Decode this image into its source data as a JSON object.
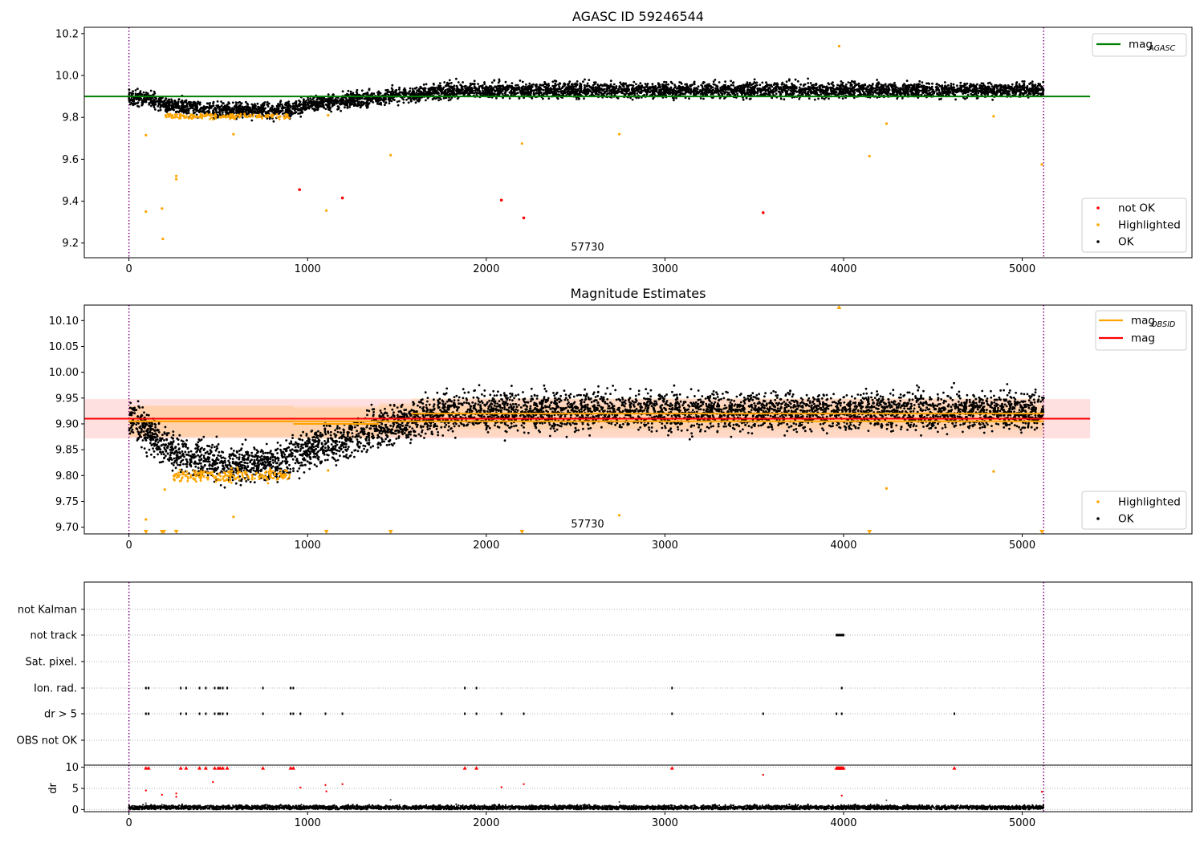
{
  "chart_data": [
    {
      "type": "scatter",
      "title": "AGASC ID 59246544",
      "annotation": "57730",
      "xlim": [
        -250,
        5950
      ],
      "ylim": [
        9.13,
        10.23
      ],
      "x_ticks": [
        0,
        1000,
        2000,
        3000,
        4000,
        5000
      ],
      "y_ticks": [
        9.2,
        9.4,
        9.6,
        9.8,
        10.0,
        10.2
      ],
      "y_tick_labels": [
        "9.2",
        "9.4",
        "9.6",
        "9.8",
        "10.0",
        "10.2"
      ],
      "vlines": [
        0,
        5120
      ],
      "hline": {
        "label": "mag",
        "label_sub": "AGASC",
        "y": 9.9,
        "x_range": [
          -250,
          5380
        ],
        "color": "#008000"
      },
      "legend_position": "top-right, bottom-right",
      "legend_lines": [
        {
          "name": "mag",
          "sub": "AGASC",
          "color": "#008000"
        }
      ],
      "legend_points": [
        {
          "name": "not OK",
          "color": "#ff0000"
        },
        {
          "name": "Highlighted",
          "color": "#ffa500"
        },
        {
          "name": "OK",
          "color": "#000000"
        }
      ],
      "trend": [
        [
          0,
          9.9
        ],
        [
          100,
          9.89
        ],
        [
          200,
          9.86
        ],
        [
          400,
          9.84
        ],
        [
          600,
          9.835
        ],
        [
          800,
          9.83
        ],
        [
          900,
          9.835
        ],
        [
          1000,
          9.86
        ],
        [
          1200,
          9.88
        ],
        [
          1400,
          9.895
        ],
        [
          1600,
          9.91
        ],
        [
          1800,
          9.93
        ],
        [
          5120,
          9.93
        ]
      ],
      "ok_n": 5100,
      "ok_x_range": [
        0,
        5120
      ],
      "ok_scatter": 0.018,
      "highlight_band": {
        "x_range": [
          200,
          900
        ],
        "y": 9.805
      },
      "highlighted_points": [
        [
          95,
          9.715
        ],
        [
          95,
          9.35
        ],
        [
          185,
          9.365
        ],
        [
          190,
          9.22
        ],
        [
          265,
          9.52
        ],
        [
          265,
          9.505
        ],
        [
          585,
          9.72
        ],
        [
          1105,
          9.355
        ],
        [
          1115,
          9.81
        ],
        [
          1465,
          9.62
        ],
        [
          2200,
          9.675
        ],
        [
          2745,
          9.72
        ],
        [
          3975,
          10.14
        ],
        [
          4145,
          9.615
        ],
        [
          4240,
          9.77
        ],
        [
          4840,
          9.805
        ],
        [
          5110,
          9.575
        ]
      ],
      "not_ok_points": [
        [
          955,
          9.455
        ],
        [
          1195,
          9.415
        ],
        [
          2085,
          9.405
        ],
        [
          2210,
          9.32
        ],
        [
          3550,
          9.345
        ]
      ]
    },
    {
      "type": "scatter",
      "title": "Magnitude Estimates",
      "annotation": "57730",
      "xlim": [
        -250,
        5950
      ],
      "ylim": [
        9.687,
        10.13
      ],
      "x_ticks": [
        0,
        1000,
        2000,
        3000,
        4000,
        5000
      ],
      "y_ticks": [
        9.7,
        9.75,
        9.8,
        9.85,
        9.9,
        9.95,
        10.0,
        10.05,
        10.1
      ],
      "y_tick_labels": [
        "9.70",
        "9.75",
        "9.80",
        "9.85",
        "9.90",
        "9.95",
        "10.00",
        "10.05",
        "10.10"
      ],
      "vlines": [
        0,
        5120
      ],
      "mag_line": {
        "y": 9.91,
        "band": [
          9.872,
          9.948
        ],
        "x_range": [
          -250,
          5380
        ],
        "color": "#ff0000"
      },
      "obsid_mag": [
        [
          0,
          5120,
          9.905,
          9.875,
          9.935
        ],
        [
          0,
          920,
          9.905,
          9.875,
          9.935
        ],
        [
          920,
          1400,
          9.9,
          9.87,
          9.93
        ],
        [
          1400,
          1580,
          9.91,
          9.88,
          9.94
        ],
        [
          1580,
          5120,
          9.92,
          9.89,
          9.95
        ]
      ],
      "legend_position": "top-right, bottom-right",
      "legend_lines": [
        {
          "name": "mag",
          "sub": "OBSID",
          "color": "#ffa500"
        },
        {
          "name": "mag",
          "sub": "",
          "color": "#ff0000"
        }
      ],
      "legend_points": [
        {
          "name": "Highlighted",
          "color": "#ffa500"
        },
        {
          "name": "OK",
          "color": "#000000"
        }
      ],
      "trend": [
        [
          0,
          9.91
        ],
        [
          60,
          9.9
        ],
        [
          150,
          9.87
        ],
        [
          250,
          9.845
        ],
        [
          400,
          9.83
        ],
        [
          600,
          9.82
        ],
        [
          800,
          9.825
        ],
        [
          900,
          9.835
        ],
        [
          1000,
          9.85
        ],
        [
          1200,
          9.87
        ],
        [
          1400,
          9.89
        ],
        [
          1600,
          9.91
        ],
        [
          1800,
          9.925
        ],
        [
          5120,
          9.925
        ]
      ],
      "ok_n": 5100,
      "ok_x_range": [
        0,
        5120
      ],
      "ok_scatter": 0.018,
      "highlight_band": {
        "x_range": [
          250,
          900
        ],
        "y": 9.8
      },
      "highlighted_points": [
        [
          95,
          9.715
        ],
        [
          200,
          9.773
        ],
        [
          585,
          9.72
        ],
        [
          1115,
          9.81
        ],
        [
          2745,
          9.723
        ],
        [
          4240,
          9.775
        ],
        [
          4840,
          9.808
        ]
      ],
      "clipped_low": [
        95,
        185,
        195,
        265,
        1105,
        1465,
        2200,
        4145,
        5110
      ],
      "clipped_high": [
        3975
      ]
    },
    {
      "type": "scatter",
      "annotation": "",
      "xlim": [
        -250,
        5950
      ],
      "x_ticks": [
        0,
        1000,
        2000,
        3000,
        4000,
        5000
      ],
      "vlines": [
        0,
        5120
      ],
      "flag_rows": [
        "not Kalman",
        "not track",
        "Sat. pixel.",
        "Ion. rad.",
        "dr > 5",
        "OBS not OK"
      ],
      "flag_points": {
        "not Kalman": [],
        "not track": [
          3960,
          3965,
          3970,
          3975,
          3980,
          3985,
          3990,
          3995,
          4000
        ],
        "Sat. pixel.": [],
        "Ion. rad.": [
          95,
          110,
          290,
          320,
          395,
          430,
          480,
          500,
          510,
          525,
          550,
          750,
          905,
          920,
          1880,
          1945,
          3040,
          3990
        ],
        "dr > 5": [
          95,
          110,
          290,
          320,
          395,
          430,
          480,
          500,
          510,
          525,
          550,
          750,
          905,
          920,
          960,
          1100,
          1195,
          1880,
          1945,
          2085,
          2210,
          3040,
          3550,
          3960,
          3990,
          4620
        ],
        "OBS not OK": []
      },
      "dr_ylabel": "dr",
      "dr_ylim": [
        -0.5,
        10.5
      ],
      "dr_y_ticks": [
        0,
        5,
        10
      ],
      "dr_y_tick_labels": [
        "0",
        "5",
        "10"
      ],
      "dr_ok_n": 5100,
      "dr_ok_x_range": [
        0,
        5120
      ],
      "dr_ok_level": 0.5,
      "dr_clipped": [
        95,
        110,
        290,
        320,
        395,
        430,
        480,
        500,
        510,
        525,
        550,
        750,
        905,
        920,
        1880,
        1945,
        3040,
        3960,
        3965,
        3970,
        3975,
        3980,
        3985,
        3990,
        3995,
        4000,
        4620
      ],
      "dr_not_ok": [
        [
          95,
          4.5
        ],
        [
          185,
          3.5
        ],
        [
          265,
          3.8
        ],
        [
          265,
          3.0
        ],
        [
          470,
          6.5
        ],
        [
          960,
          5.2
        ],
        [
          1100,
          5.8
        ],
        [
          1105,
          4.3
        ],
        [
          1195,
          6.0
        ],
        [
          2085,
          5.3
        ],
        [
          2210,
          6.0
        ],
        [
          3550,
          8.2
        ],
        [
          3990,
          3.3
        ],
        [
          5110,
          4.2
        ]
      ],
      "dr_gray": [
        [
          95,
          1.5
        ],
        [
          185,
          1.2
        ],
        [
          1465,
          2.3
        ],
        [
          2745,
          1.8
        ],
        [
          4240,
          2.2
        ]
      ]
    }
  ]
}
